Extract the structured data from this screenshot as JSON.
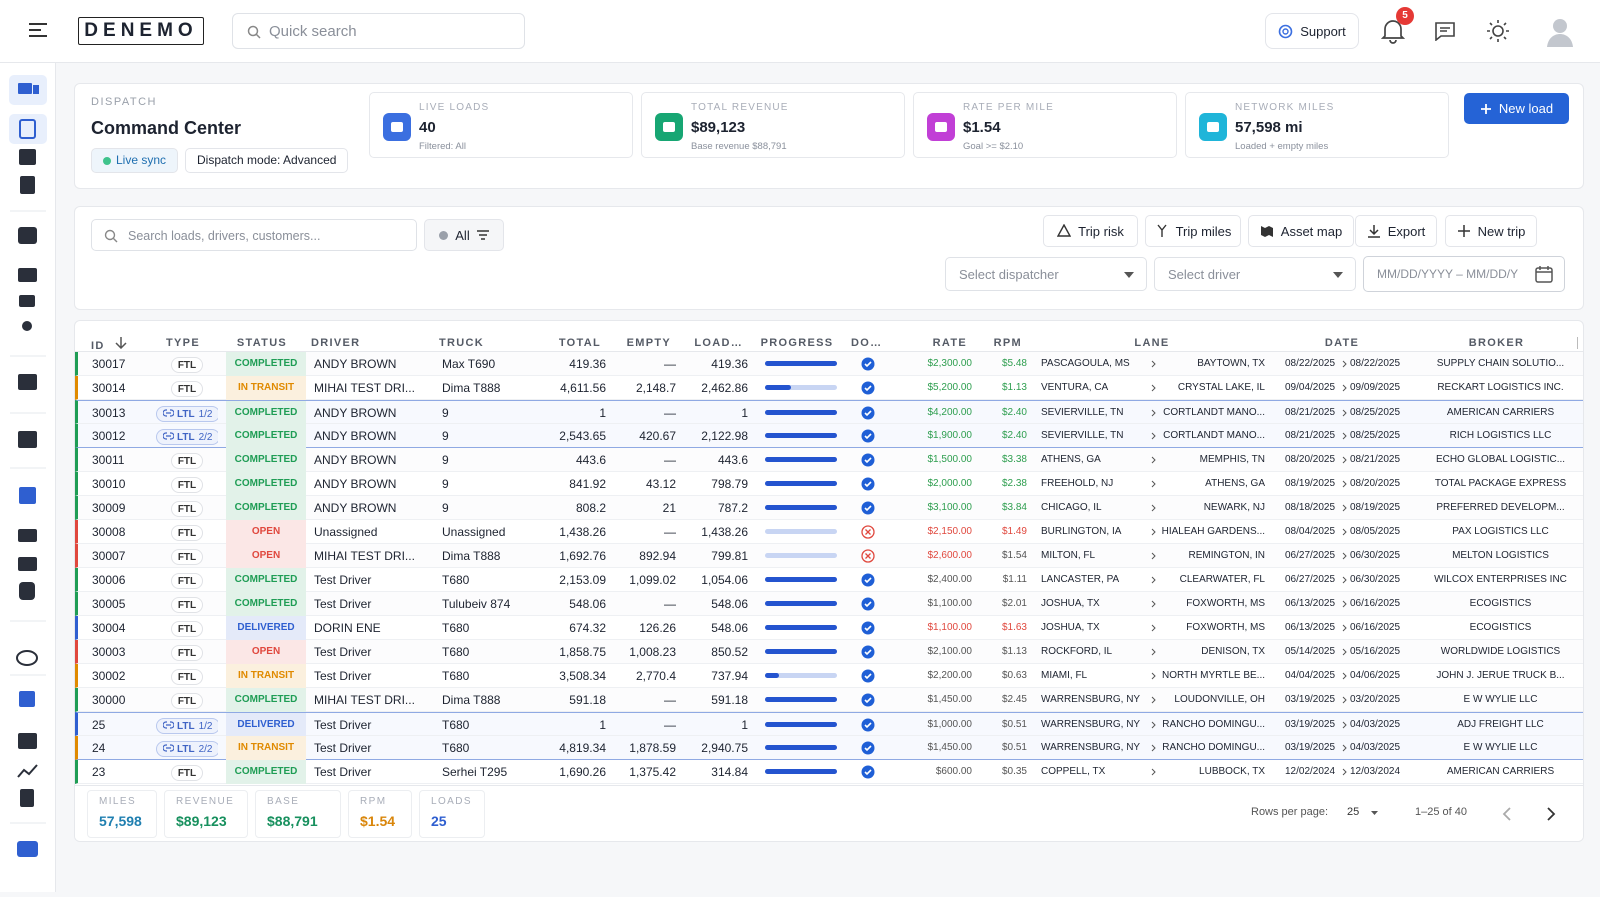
{
  "header": {
    "logo": "DENEMO",
    "search_placeholder": "Quick search",
    "support": "Support",
    "notifications": "5"
  },
  "dispatch": {
    "label": "DISPATCH",
    "title": "Command Center",
    "chips": [
      "Live sync",
      "Dispatch mode: Advanced"
    ],
    "new_load": "New load",
    "kpis": [
      {
        "label": "LIVE LOADS",
        "value": "40",
        "sub": "Filtered: All",
        "color": "#3b6fe0"
      },
      {
        "label": "TOTAL REVENUE",
        "value": "$89,123",
        "sub": "Base revenue $88,791",
        "color": "#17a673"
      },
      {
        "label": "RATE PER MILE",
        "value": "$1.54",
        "sub": "Goal >= $2.10",
        "color": "#c13fd6"
      },
      {
        "label": "NETWORK MILES",
        "value": "57,598 mi",
        "sub": "Loaded + empty miles",
        "color": "#1fb5d9"
      }
    ]
  },
  "toolbar": {
    "search_placeholder": "Search loads, drivers, customers...",
    "filter": "All",
    "buttons": [
      "Trip risk",
      "Trip miles",
      "Asset map",
      "Export",
      "New trip"
    ],
    "dispatcher": "Select dispatcher",
    "driver": "Select driver",
    "date": "MM/DD/YYYY – MM/DD/Y"
  },
  "table": {
    "columns": [
      "ID",
      "TYPE",
      "STATUS",
      "DRIVER",
      "TRUCK",
      "TOTAL",
      "EMPTY",
      "LOAD…",
      "PROGRESS",
      "DO…",
      "RATE",
      "RPM",
      "LANE",
      "DATE",
      "BROKER"
    ],
    "rows": [
      {
        "id": "30017",
        "type": "FTL",
        "status": "COMPLETED",
        "status_color": "#1f9d55",
        "driver": "ANDY BROWN",
        "truck": "Max T690",
        "total": "419.36",
        "empty": "—",
        "loaded": "419.36",
        "progress": 100,
        "docs_ok": true,
        "rate": "$2,300.00",
        "rate_color": "#2e9e4f",
        "rpm": "$5.48",
        "rpm_color": "#2e9e4f",
        "origin": "PASCAGOULA, MS",
        "dest": "BAYTOWN, TX",
        "start": "08/22/2025",
        "end": "08/22/2025",
        "broker": "SUPPLY CHAIN SOLUTIO..."
      },
      {
        "id": "30014",
        "type": "FTL",
        "status": "IN TRANSIT",
        "status_color": "#e08a00",
        "driver": "MIHAI TEST DRI...",
        "truck": "Dima T888",
        "total": "4,611.56",
        "empty": "2,148.7",
        "loaded": "2,462.86",
        "progress": 36,
        "docs_ok": true,
        "rate": "$5,200.00",
        "rate_color": "#2e9e4f",
        "rpm": "$1.13",
        "rpm_color": "#2e9e4f",
        "origin": "VENTURA, CA",
        "dest": "CRYSTAL LAKE, IL",
        "start": "09/04/2025",
        "end": "09/09/2025",
        "broker": "RECKART LOGISTICS INC."
      },
      {
        "id": "30013",
        "type": "LTL",
        "part": "1/2",
        "status": "COMPLETED",
        "status_color": "#1f9d55",
        "driver": "ANDY BROWN",
        "truck": "9",
        "total": "1",
        "empty": "—",
        "loaded": "1",
        "progress": 100,
        "docs_ok": true,
        "rate": "$4,200.00",
        "rate_color": "#2e9e4f",
        "rpm": "$2.40",
        "rpm_color": "#2e9e4f",
        "origin": "SEVIERVILLE, TN",
        "dest": "CORTLANDT MANO...",
        "start": "08/21/2025",
        "end": "08/25/2025",
        "broker": "AMERICAN CARRIERS"
      },
      {
        "id": "30012",
        "type": "LTL",
        "part": "2/2",
        "status": "COMPLETED",
        "status_color": "#1f9d55",
        "driver": "ANDY BROWN",
        "truck": "9",
        "total": "2,543.65",
        "empty": "420.67",
        "loaded": "2,122.98",
        "progress": 100,
        "docs_ok": true,
        "rate": "$1,900.00",
        "rate_color": "#2e9e4f",
        "rpm": "$2.40",
        "rpm_color": "#2e9e4f",
        "origin": "SEVIERVILLE, TN",
        "dest": "CORTLANDT MANO...",
        "start": "08/21/2025",
        "end": "08/25/2025",
        "broker": "RICH LOGISTICS LLC"
      },
      {
        "id": "30011",
        "type": "FTL",
        "status": "COMPLETED",
        "status_color": "#1f9d55",
        "driver": "ANDY BROWN",
        "truck": "9",
        "total": "443.6",
        "empty": "—",
        "loaded": "443.6",
        "progress": 100,
        "docs_ok": true,
        "rate": "$1,500.00",
        "rate_color": "#2e9e4f",
        "rpm": "$3.38",
        "rpm_color": "#2e9e4f",
        "origin": "ATHENS, GA",
        "dest": "MEMPHIS, TN",
        "start": "08/20/2025",
        "end": "08/21/2025",
        "broker": "ECHO GLOBAL LOGISTIC..."
      },
      {
        "id": "30010",
        "type": "FTL",
        "status": "COMPLETED",
        "status_color": "#1f9d55",
        "driver": "ANDY BROWN",
        "truck": "9",
        "total": "841.92",
        "empty": "43.12",
        "loaded": "798.79",
        "progress": 100,
        "docs_ok": true,
        "rate": "$2,000.00",
        "rate_color": "#2e9e4f",
        "rpm": "$2.38",
        "rpm_color": "#2e9e4f",
        "origin": "FREEHOLD, NJ",
        "dest": "ATHENS, GA",
        "start": "08/19/2025",
        "end": "08/20/2025",
        "broker": "TOTAL PACKAGE EXPRESS"
      },
      {
        "id": "30009",
        "type": "FTL",
        "status": "COMPLETED",
        "status_color": "#1f9d55",
        "driver": "ANDY BROWN",
        "truck": "9",
        "total": "808.2",
        "empty": "21",
        "loaded": "787.2",
        "progress": 100,
        "docs_ok": true,
        "rate": "$3,100.00",
        "rate_color": "#2e9e4f",
        "rpm": "$3.84",
        "rpm_color": "#2e9e4f",
        "origin": "CHICAGO, IL",
        "dest": "NEWARK, NJ",
        "start": "08/18/2025",
        "end": "08/19/2025",
        "broker": "PREFERRED DEVELOPM..."
      },
      {
        "id": "30008",
        "type": "FTL",
        "status": "OPEN",
        "status_color": "#e0483e",
        "driver": "Unassigned",
        "truck": "Unassigned",
        "total": "1,438.26",
        "empty": "—",
        "loaded": "1,438.26",
        "progress": 0,
        "docs_ok": false,
        "rate": "$2,150.00",
        "rate_color": "#e0483e",
        "rpm": "$1.49",
        "rpm_color": "#e0483e",
        "origin": "BURLINGTON, IA",
        "dest": "HIALEAH GARDENS...",
        "start": "08/04/2025",
        "end": "08/05/2025",
        "broker": "PAX LOGISTICS LLC"
      },
      {
        "id": "30007",
        "type": "FTL",
        "status": "OPEN",
        "status_color": "#e0483e",
        "driver": "MIHAI TEST DRI...",
        "truck": "Dima T888",
        "total": "1,692.76",
        "empty": "892.94",
        "loaded": "799.81",
        "progress": 0,
        "docs_ok": false,
        "rate": "$2,600.00",
        "rate_color": "#e0483e",
        "rpm": "$1.54",
        "rpm_color": "#555555",
        "origin": "MILTON, FL",
        "dest": "REMINGTON, IN",
        "start": "06/27/2025",
        "end": "06/30/2025",
        "broker": "MELTON LOGISTICS"
      },
      {
        "id": "30006",
        "type": "FTL",
        "status": "COMPLETED",
        "status_color": "#1f9d55",
        "driver": "Test Driver",
        "truck": "T680",
        "total": "2,153.09",
        "empty": "1,099.02",
        "loaded": "1,054.06",
        "progress": 100,
        "docs_ok": true,
        "rate": "$2,400.00",
        "rate_color": "#555555",
        "rpm": "$1.11",
        "rpm_color": "#555555",
        "origin": "LANCASTER, PA",
        "dest": "CLEARWATER, FL",
        "start": "06/27/2025",
        "end": "06/30/2025",
        "broker": "WILCOX ENTERPRISES INC"
      },
      {
        "id": "30005",
        "type": "FTL",
        "status": "COMPLETED",
        "status_color": "#1f9d55",
        "driver": "Test Driver",
        "truck": "Tulubeiv 874",
        "total": "548.06",
        "empty": "—",
        "loaded": "548.06",
        "progress": 100,
        "docs_ok": true,
        "rate": "$1,100.00",
        "rate_color": "#555555",
        "rpm": "$2.01",
        "rpm_color": "#555555",
        "origin": "JOSHUA, TX",
        "dest": "FOXWORTH, MS",
        "start": "06/13/2025",
        "end": "06/16/2025",
        "broker": "ECOGISTICS"
      },
      {
        "id": "30004",
        "type": "FTL",
        "status": "DELIVERED",
        "status_color": "#2f5fd0",
        "driver": "DORIN ENE",
        "truck": "T680",
        "total": "674.32",
        "empty": "126.26",
        "loaded": "548.06",
        "progress": 100,
        "docs_ok": true,
        "rate": "$1,100.00",
        "rate_color": "#e0483e",
        "rpm": "$1.63",
        "rpm_color": "#e0483e",
        "origin": "JOSHUA, TX",
        "dest": "FOXWORTH, MS",
        "start": "06/13/2025",
        "end": "06/16/2025",
        "broker": "ECOGISTICS"
      },
      {
        "id": "30003",
        "type": "FTL",
        "status": "OPEN",
        "status_color": "#e0483e",
        "driver": "Test Driver",
        "truck": "T680",
        "total": "1,858.75",
        "empty": "1,008.23",
        "loaded": "850.52",
        "progress": 100,
        "docs_ok": true,
        "rate": "$2,100.00",
        "rate_color": "#555555",
        "rpm": "$1.13",
        "rpm_color": "#555555",
        "origin": "ROCKFORD, IL",
        "dest": "DENISON, TX",
        "start": "05/14/2025",
        "end": "05/16/2025",
        "broker": "WORLDWIDE LOGISTICS"
      },
      {
        "id": "30002",
        "type": "FTL",
        "status": "IN TRANSIT",
        "status_color": "#e08a00",
        "driver": "Test Driver",
        "truck": "T680",
        "total": "3,508.34",
        "empty": "2,770.4",
        "loaded": "737.94",
        "progress": 20,
        "docs_ok": true,
        "rate": "$2,200.00",
        "rate_color": "#555555",
        "rpm": "$0.63",
        "rpm_color": "#555555",
        "origin": "MIAMI, FL",
        "dest": "NORTH MYRTLE BE...",
        "start": "04/04/2025",
        "end": "04/06/2025",
        "broker": "JOHN J. JERUE TRUCK B..."
      },
      {
        "id": "30000",
        "type": "FTL",
        "status": "COMPLETED",
        "status_color": "#1f9d55",
        "driver": "MIHAI TEST DRI...",
        "truck": "Dima T888",
        "total": "591.18",
        "empty": "—",
        "loaded": "591.18",
        "progress": 100,
        "docs_ok": true,
        "rate": "$1,450.00",
        "rate_color": "#555555",
        "rpm": "$2.45",
        "rpm_color": "#555555",
        "origin": "WARRENSBURG, NY",
        "dest": "LOUDONVILLE, OH",
        "start": "03/19/2025",
        "end": "03/20/2025",
        "broker": "E W WYLIE LLC"
      },
      {
        "id": "25",
        "type": "LTL",
        "part": "1/2",
        "status": "DELIVERED",
        "status_color": "#2f5fd0",
        "driver": "Test Driver",
        "truck": "T680",
        "total": "1",
        "empty": "—",
        "loaded": "1",
        "progress": 100,
        "docs_ok": true,
        "rate": "$1,000.00",
        "rate_color": "#555555",
        "rpm": "$0.51",
        "rpm_color": "#555555",
        "origin": "WARRENSBURG, NY",
        "dest": "RANCHO DOMINGU...",
        "start": "03/19/2025",
        "end": "04/03/2025",
        "broker": "ADJ FREIGHT LLC"
      },
      {
        "id": "24",
        "type": "LTL",
        "part": "2/2",
        "status": "IN TRANSIT",
        "status_color": "#e08a00",
        "driver": "Test Driver",
        "truck": "T680",
        "total": "4,819.34",
        "empty": "1,878.59",
        "loaded": "2,940.75",
        "progress": 100,
        "docs_ok": true,
        "rate": "$1,450.00",
        "rate_color": "#555555",
        "rpm": "$0.51",
        "rpm_color": "#555555",
        "origin": "WARRENSBURG, NY",
        "dest": "RANCHO DOMINGU...",
        "start": "03/19/2025",
        "end": "04/03/2025",
        "broker": "E W WYLIE LLC"
      },
      {
        "id": "23",
        "type": "FTL",
        "status": "COMPLETED",
        "status_color": "#1f9d55",
        "driver": "Test Driver",
        "truck": "Serhei T295",
        "total": "1,690.26",
        "empty": "1,375.42",
        "loaded": "314.84",
        "progress": 100,
        "docs_ok": true,
        "rate": "$600.00",
        "rate_color": "#555555",
        "rpm": "$0.35",
        "rpm_color": "#555555",
        "origin": "COPPELL, TX",
        "dest": "LUBBOCK, TX",
        "start": "12/02/2024",
        "end": "12/03/2024",
        "broker": "AMERICAN CARRIERS"
      }
    ]
  },
  "summary": [
    {
      "label": "MILES",
      "value": "57,598",
      "color": "#1f7fb0"
    },
    {
      "label": "REVENUE",
      "value": "$89,123",
      "color": "#17905e"
    },
    {
      "label": "BASE",
      "value": "$88,791",
      "color": "#17905e"
    },
    {
      "label": "RPM",
      "value": "$1.54",
      "color": "#d9860b"
    },
    {
      "label": "LOADS",
      "value": "25",
      "color": "#2f5fd0"
    }
  ],
  "pagination": {
    "rows_label": "Rows per page:",
    "rows_value": "25",
    "range": "1–25 of 40"
  }
}
